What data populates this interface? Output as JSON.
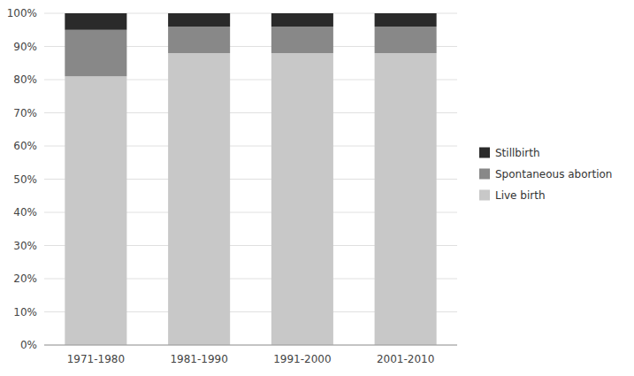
{
  "chart_data": {
    "type": "bar",
    "stacked": true,
    "categories": [
      "1971-1980",
      "1981-1990",
      "1991-2000",
      "2001-2010"
    ],
    "series": [
      {
        "name": "Live birth",
        "color": "#c8c8c8",
        "values": [
          81,
          88,
          88,
          88
        ]
      },
      {
        "name": "Spontaneous abortion",
        "color": "#888888",
        "values": [
          14,
          8,
          8,
          8
        ]
      },
      {
        "name": "Stillbirth",
        "color": "#2a2a2a",
        "values": [
          5,
          4,
          4,
          4
        ]
      }
    ],
    "ylim": [
      0,
      100
    ],
    "yticks": [
      {
        "value": 0,
        "label": "0%"
      },
      {
        "value": 10,
        "label": "10%"
      },
      {
        "value": 20,
        "label": "20%"
      },
      {
        "value": 30,
        "label": "30%"
      },
      {
        "value": 40,
        "label": "40%"
      },
      {
        "value": 50,
        "label": "50%"
      },
      {
        "value": 60,
        "label": "60%"
      },
      {
        "value": 70,
        "label": "70%"
      },
      {
        "value": 80,
        "label": "80%"
      },
      {
        "value": 90,
        "label": "90%"
      },
      {
        "value": 100,
        "label": "100%"
      }
    ],
    "grid": true,
    "legend": "right"
  }
}
